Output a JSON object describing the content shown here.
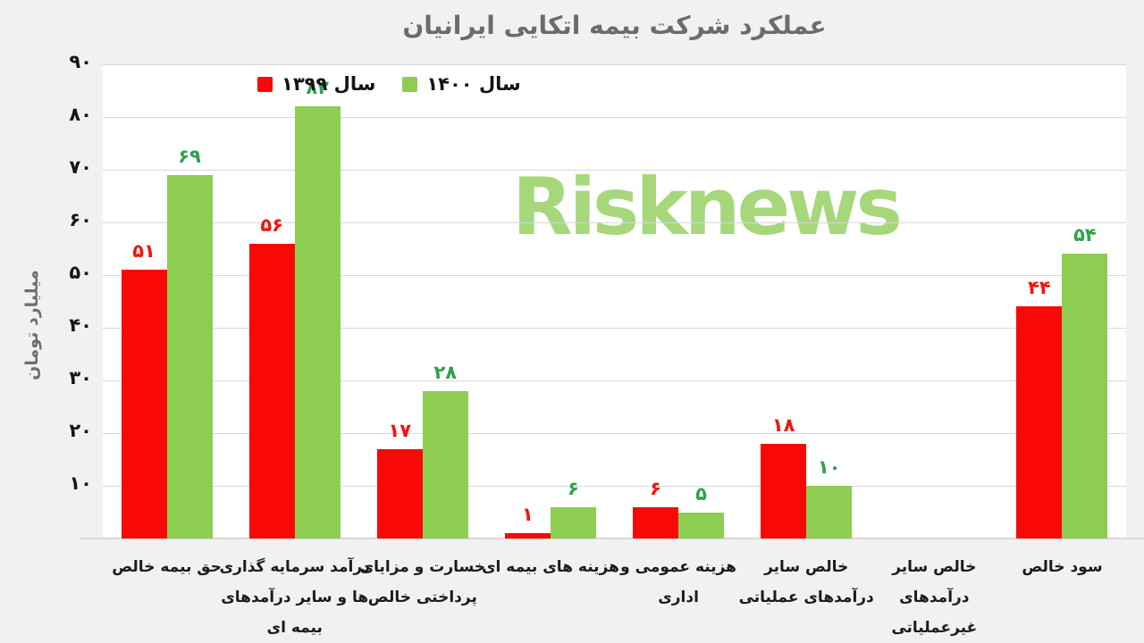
{
  "title": "عملکرد شرکت بیمه اتکایی ایرانیان",
  "watermark": "Risknews",
  "colors": {
    "background": "#F1F1F0",
    "plot_background": "#FFFFFF",
    "gridline": "#D8D8D8",
    "series_1399": "#F90808",
    "series_1400": "#8DCE52",
    "label_1399": "#F2140C",
    "label_1400": "#2FA14C",
    "watermark": "#A6D87B",
    "title_gray": "#6C6C6C"
  },
  "chart_data": {
    "type": "bar",
    "title": "عملکرد شرکت بیمه اتکایی ایرانیان",
    "ylabel": "میلیارد تومان",
    "xlabel": "",
    "ylim": [
      0,
      90
    ],
    "grid": true,
    "legend_position": "top-left",
    "categories": [
      "حق بیمه خالص",
      "درآمد سرمایه گذاری ها و سایر درآمدهای بیمه ای",
      "خسارت و مزایای پرداختی خالص",
      "هزینه های بیمه ای",
      "هزینه عمومی و اداری",
      "خالص سایر درآمدهای عملیاتی",
      "خالص سایر درآمدهای غیرعملیاتی",
      "سود خالص"
    ],
    "categories_display": [
      "حق بیمه خالص",
      "درآمد سرمایه گذاری\nها و سایر درآمدهای\nبیمه ای",
      "خسارت و مزایای\nپرداختی خالص",
      "هزینه های بیمه ای",
      "هزینه عمومی و\nاداری",
      "خالص سایر\nدرآمدهای عملیاتی",
      "خالص سایر\nدرآمدهای\nغیرعملیاتی",
      "سود خالص"
    ],
    "series": [
      {
        "name": "سال ۱۳۹۹",
        "color": "#F90808",
        "label_color": "#F2140C",
        "values": [
          51,
          56,
          17,
          1,
          6,
          18,
          0,
          44
        ],
        "value_labels": [
          "۵۱",
          "۵۶",
          "۱۷",
          "۱",
          "۶",
          "۱۸",
          "",
          "۴۴"
        ]
      },
      {
        "name": "سال ۱۴۰۰",
        "color": "#8DCE52",
        "label_color": "#2FA14C",
        "values": [
          69,
          82,
          28,
          6,
          5,
          10,
          0,
          54
        ],
        "value_labels": [
          "۶۹",
          "۸۲",
          "۲۸",
          "۶",
          "۵",
          "۱۰",
          "",
          "۵۴"
        ]
      }
    ],
    "y_ticks": [
      10,
      20,
      30,
      40,
      50,
      60,
      70,
      80,
      90
    ],
    "y_tick_labels": [
      "۱۰",
      "۲۰",
      "۳۰",
      "۴۰",
      "۵۰",
      "۶۰",
      "۷۰",
      "۸۰",
      "۹۰"
    ]
  }
}
